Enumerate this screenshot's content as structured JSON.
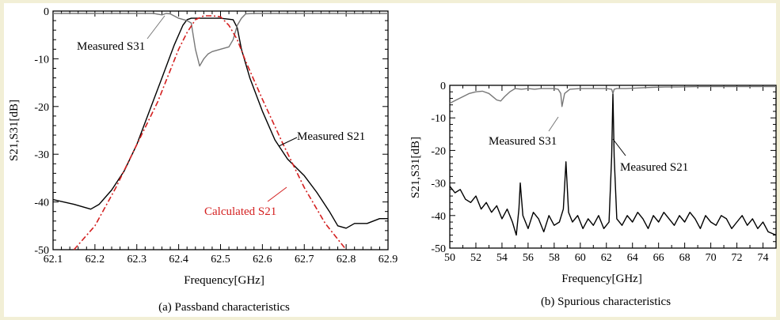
{
  "chart_data": [
    {
      "type": "line",
      "caption": "(a) Passband characteristics",
      "xlabel": "Frequency[GHz]",
      "ylabel": "S21,S31[dB]",
      "xlim": [
        62.1,
        62.9
      ],
      "ylim": [
        -50,
        0
      ],
      "xticks": [
        "62.1",
        "62.2",
        "62.3",
        "62.4",
        "62.5",
        "62.6",
        "62.7",
        "62.8",
        "62.9"
      ],
      "yticks": [
        "0",
        "-10",
        "-20",
        "-30",
        "-40",
        "-50"
      ],
      "grid": false,
      "series": [
        {
          "name": "Measured S21",
          "style": "solid",
          "color": "#000000",
          "x": [
            62.1,
            62.15,
            62.19,
            62.21,
            62.24,
            62.27,
            62.3,
            62.33,
            62.36,
            62.39,
            62.41,
            62.42,
            62.43,
            62.44,
            62.46,
            62.5,
            62.53,
            62.54,
            62.55,
            62.57,
            62.6,
            62.63,
            62.66,
            62.7,
            62.73,
            62.76,
            62.78,
            62.8,
            62.82,
            62.85,
            62.88,
            62.9
          ],
          "y": [
            -39.5,
            -40.5,
            -41.5,
            -40.5,
            -37.5,
            -33.5,
            -28,
            -21,
            -14,
            -7,
            -3,
            -1.8,
            -1.5,
            -1.5,
            -1.5,
            -1.5,
            -1.8,
            -3.5,
            -8,
            -14,
            -21,
            -27,
            -31,
            -34.5,
            -38,
            -42,
            -45,
            -45.5,
            -44.5,
            -44.5,
            -43.5,
            -43.5
          ]
        },
        {
          "name": "Measured S31",
          "style": "solid",
          "color": "#777777",
          "x": [
            62.1,
            62.34,
            62.36,
            62.37,
            62.38,
            62.4,
            62.42,
            62.43,
            62.44,
            62.45,
            62.46,
            62.47,
            62.48,
            62.5,
            62.52,
            62.53,
            62.54,
            62.55,
            62.56,
            62.58,
            62.6,
            62.65,
            62.9
          ],
          "y": [
            -0.5,
            -0.5,
            -0.8,
            -0.5,
            -0.6,
            -1.5,
            -2,
            -2.5,
            -8,
            -11.5,
            -10,
            -9,
            -8.5,
            -8,
            -7.5,
            -6,
            -3,
            -1.5,
            -0.6,
            -0.5,
            -0.5,
            -0.5,
            -0.5
          ]
        },
        {
          "name": "Calculated S21",
          "style": "dashdot",
          "color": "#d42020",
          "x": [
            62.15,
            62.2,
            62.25,
            62.3,
            62.35,
            62.4,
            62.42,
            62.44,
            62.46,
            62.48,
            62.5,
            62.52,
            62.54,
            62.56,
            62.6,
            62.65,
            62.7,
            62.75,
            62.8
          ],
          "y": [
            -50,
            -45,
            -37,
            -28,
            -19,
            -8,
            -4.5,
            -1.8,
            -1,
            -1,
            -1.2,
            -3,
            -6,
            -10.5,
            -18.5,
            -28,
            -37,
            -44.5,
            -50
          ]
        }
      ],
      "annotations": [
        {
          "text": "Measured S31"
        },
        {
          "text": "Measured S21"
        },
        {
          "text": "Calculated S21",
          "color": "#d42020"
        }
      ]
    },
    {
      "type": "line",
      "caption": "(b) Spurious characteristics",
      "xlabel": "Frequency[GHz]",
      "ylabel": "S21,S31[dB]",
      "xlim": [
        50,
        75
      ],
      "ylim": [
        -50,
        0
      ],
      "xticks": [
        "50",
        "52",
        "54",
        "56",
        "58",
        "60",
        "62",
        "64",
        "66",
        "68",
        "70",
        "72",
        "74"
      ],
      "yticks": [
        "0",
        "-10",
        "-20",
        "-30",
        "-40",
        "-50"
      ],
      "grid": false,
      "series": [
        {
          "name": "Measured S21",
          "style": "solid",
          "color": "#000000",
          "x": [
            50.0,
            50.4,
            50.8,
            51.2,
            51.6,
            52.0,
            52.4,
            52.8,
            53.2,
            53.6,
            54.0,
            54.4,
            54.8,
            55.1,
            55.3,
            55.4,
            55.6,
            56.0,
            56.4,
            56.8,
            57.2,
            57.6,
            58.0,
            58.4,
            58.7,
            58.9,
            59.1,
            59.4,
            59.8,
            60.2,
            60.6,
            61.0,
            61.4,
            61.8,
            62.2,
            62.4,
            62.5,
            62.6,
            62.8,
            63.2,
            63.6,
            64.0,
            64.4,
            64.8,
            65.2,
            65.6,
            66.0,
            66.4,
            66.8,
            67.2,
            67.6,
            68.0,
            68.4,
            68.8,
            69.2,
            69.6,
            70.0,
            70.4,
            70.8,
            71.2,
            71.6,
            72.0,
            72.4,
            72.8,
            73.2,
            73.6,
            74.0,
            74.4,
            75.0
          ],
          "y": [
            -31,
            -33,
            -32,
            -35,
            -36,
            -34,
            -38,
            -36,
            -39,
            -37,
            -41,
            -38,
            -42,
            -46,
            -38,
            -30,
            -40,
            -44,
            -39,
            -41,
            -45,
            -40,
            -43,
            -42,
            -38,
            -23.5,
            -39,
            -42,
            -40,
            -44,
            -41,
            -43,
            -40,
            -44,
            -42,
            -22,
            -2.5,
            -22,
            -41,
            -43,
            -40,
            -42,
            -39,
            -41,
            -44,
            -40,
            -42,
            -39,
            -41,
            -43,
            -40,
            -42,
            -39,
            -41,
            -44,
            -40,
            -42,
            -43,
            -40,
            -41,
            -44,
            -42,
            -40,
            -43,
            -41,
            -44,
            -42,
            -45,
            -46
          ]
        },
        {
          "name": "Measured S31",
          "style": "solid",
          "color": "#777777",
          "x": [
            50.0,
            50.5,
            51.0,
            51.5,
            52.0,
            52.5,
            53.0,
            53.3,
            53.6,
            53.9,
            54.2,
            54.6,
            55.0,
            55.5,
            56.0,
            56.5,
            57.0,
            57.5,
            58.0,
            58.3,
            58.5,
            58.6,
            58.8,
            59.2,
            60.0,
            61.0,
            62.0,
            62.4,
            62.5,
            62.6,
            62.8,
            63.5,
            64.5,
            65.5,
            66.5,
            67.5,
            69.0,
            71.0,
            73.0,
            75.0
          ],
          "y": [
            -5.5,
            -4.5,
            -3.5,
            -2.5,
            -2,
            -1.8,
            -2.5,
            -3.5,
            -4.5,
            -4.8,
            -3.5,
            -2,
            -1,
            -1.2,
            -1,
            -1.2,
            -1,
            -1,
            -1,
            -1.2,
            -2.5,
            -6.5,
            -2.5,
            -1.2,
            -1,
            -1,
            -1,
            -1.2,
            -2.5,
            -1.2,
            -1,
            -1,
            -0.8,
            -0.6,
            -0.5,
            -0.5,
            -0.4,
            -0.4,
            -0.4,
            -0.4
          ]
        }
      ],
      "annotations": [
        {
          "text": "Measured S31"
        },
        {
          "text": "Measured S21"
        }
      ]
    }
  ]
}
